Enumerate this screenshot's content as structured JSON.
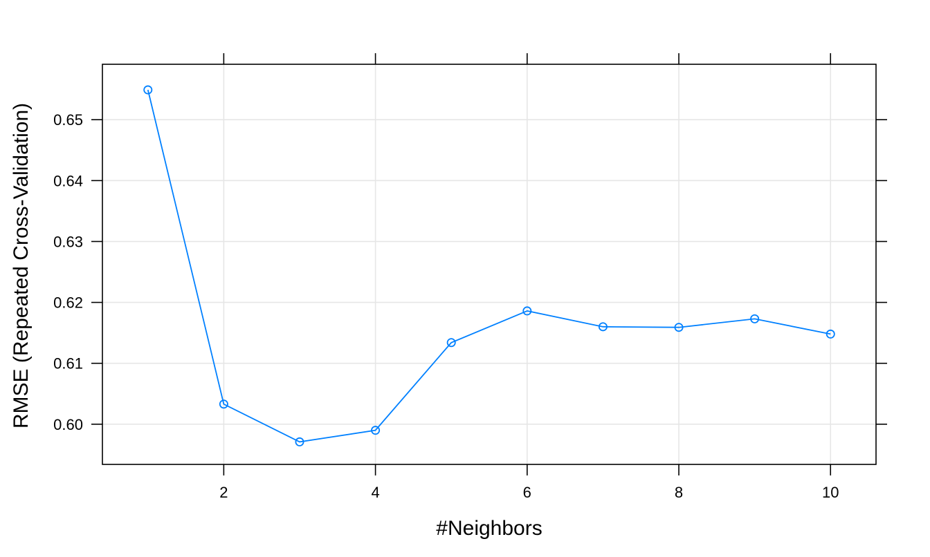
{
  "chart_data": {
    "type": "line",
    "title": "",
    "xlabel": "#Neighbors",
    "ylabel": "RMSE (Repeated Cross-Validation)",
    "xlim": [
      0.4,
      10.6
    ],
    "ylim": [
      0.5934,
      0.6591
    ],
    "xticks": [
      2,
      4,
      6,
      8,
      10
    ],
    "xtick_labels": [
      "2",
      "4",
      "6",
      "8",
      "10"
    ],
    "yticks": [
      0.6,
      0.61,
      0.62,
      0.63,
      0.64,
      0.65
    ],
    "ytick_labels": [
      "0.60",
      "0.61",
      "0.62",
      "0.63",
      "0.64",
      "0.65"
    ],
    "grid": true,
    "legend": "none",
    "x": [
      1,
      2,
      3,
      4,
      5,
      6,
      7,
      8,
      9,
      10
    ],
    "series": [
      {
        "values": [
          0.6549,
          0.6033,
          0.5971,
          0.599,
          0.6134,
          0.6186,
          0.616,
          0.6159,
          0.6173,
          0.6148
        ],
        "color": "#0080ff"
      }
    ],
    "colors": {
      "line": "#0080ff",
      "grid": "#e6e6e6",
      "frame": "#000000"
    }
  }
}
